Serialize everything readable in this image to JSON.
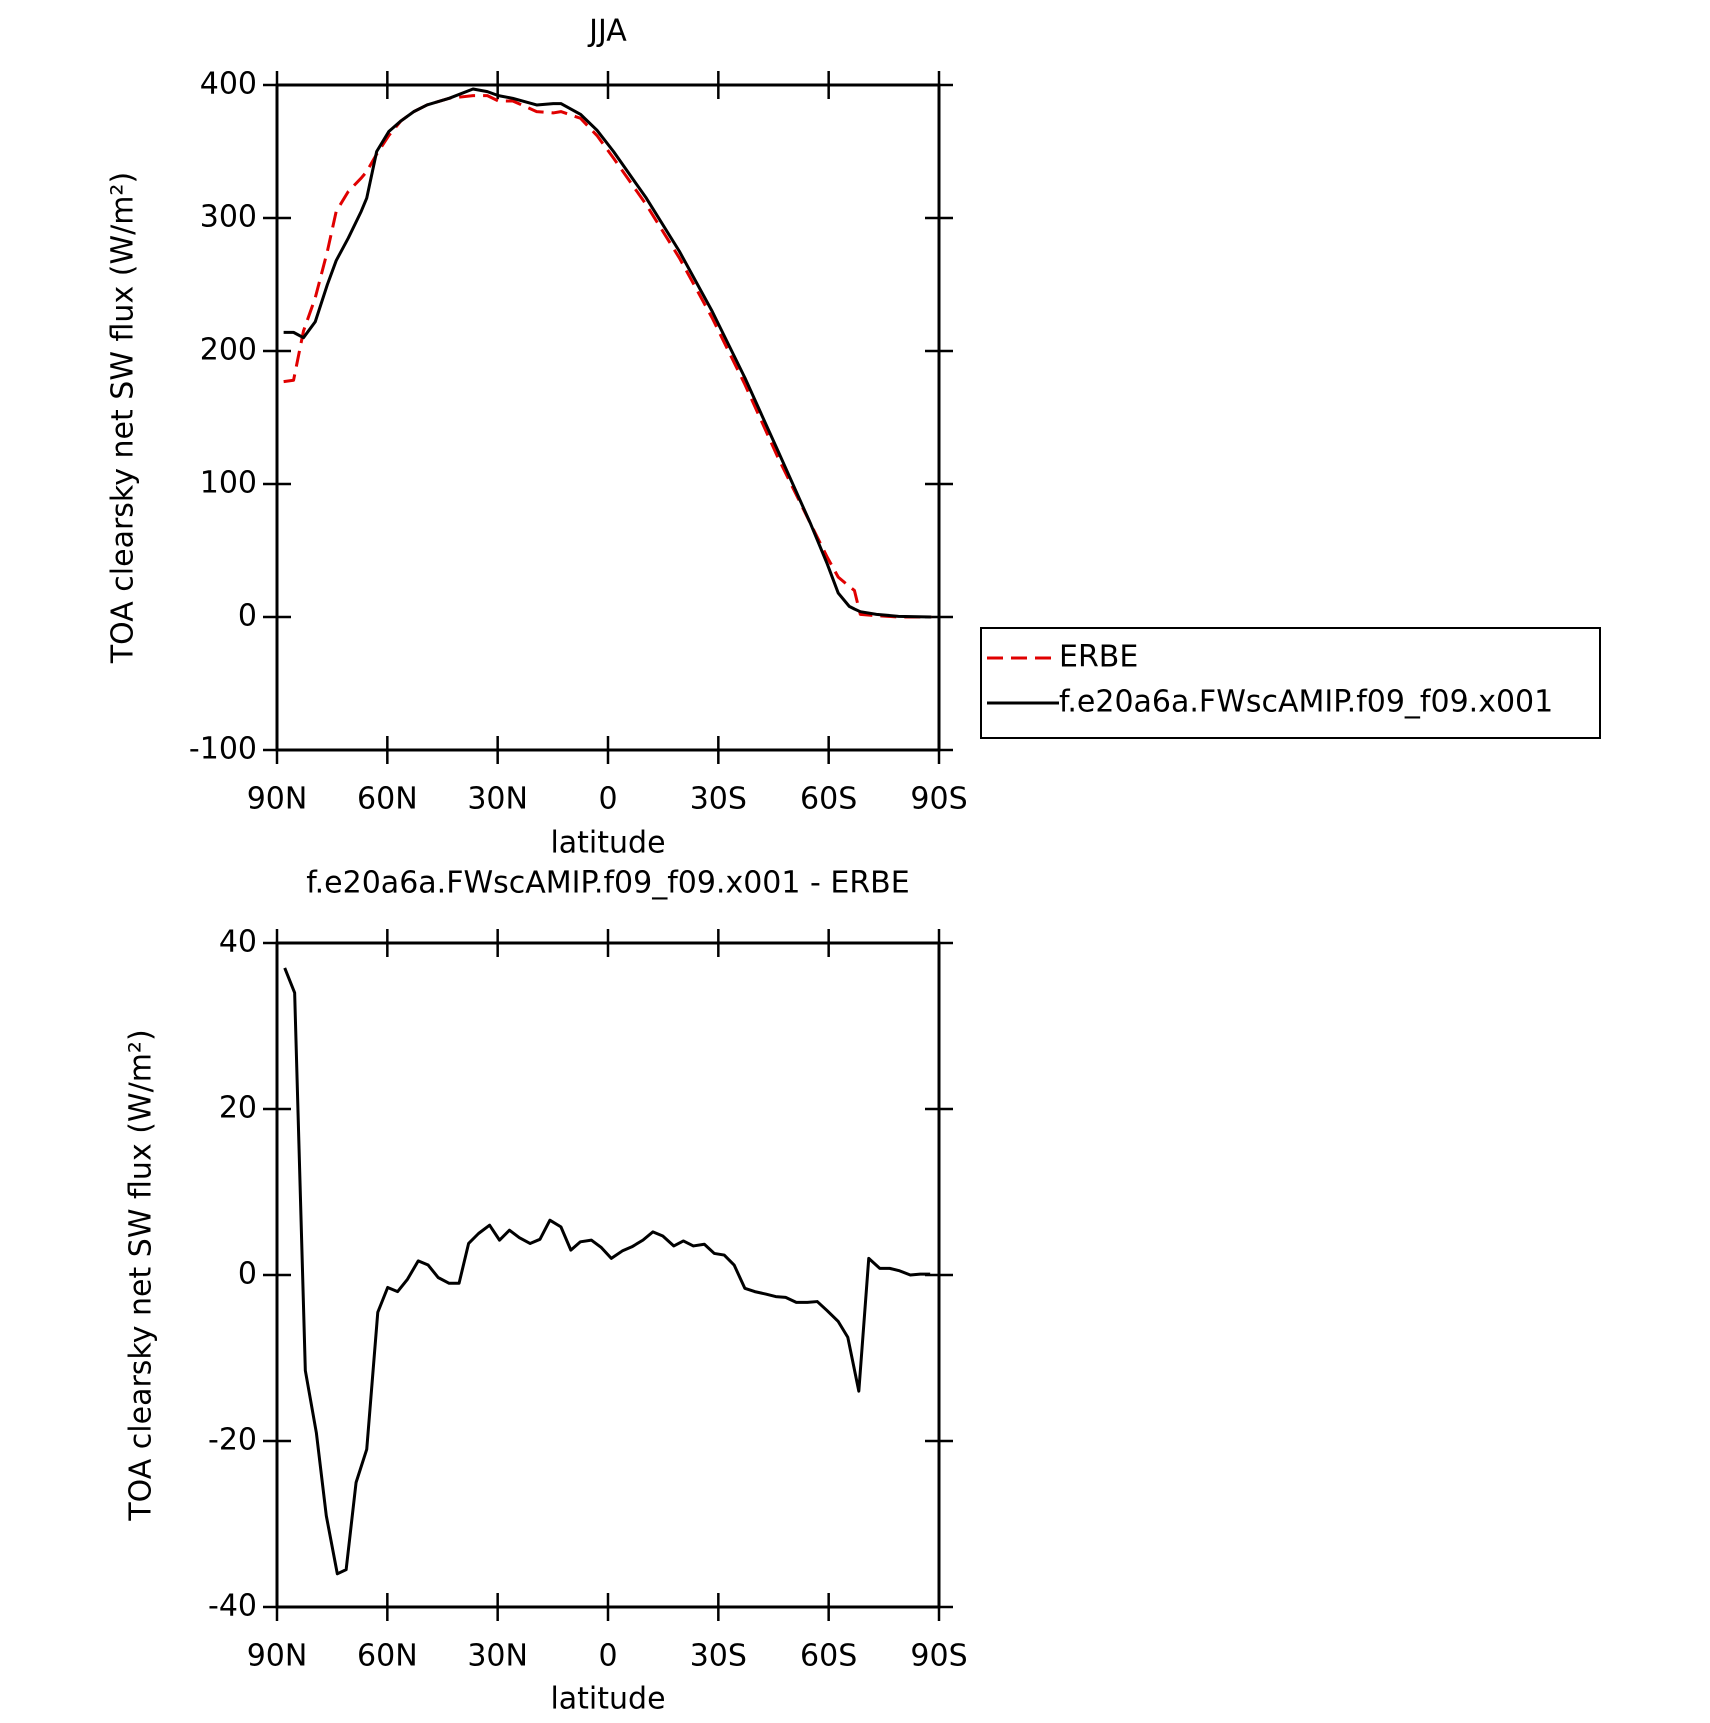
{
  "chart_data": [
    {
      "type": "line",
      "title": "JJA",
      "xlabel": "latitude",
      "ylabel": "TOA clearsky net SW flux (W/m²)",
      "x": [
        88.2,
        85.5,
        82.8,
        79.6,
        76.3,
        73.9,
        70.6,
        67.1,
        65.6,
        62.9,
        59.6,
        56.3,
        52.8,
        49.2,
        43.2,
        36.7,
        32.8,
        29.8,
        25.9,
        19.4,
        14.9,
        12.8,
        7.5,
        3.0,
        -1.5,
        -10.4,
        -19.4,
        -28.3,
        -37.2,
        -46.2,
        -55.1,
        -59.6,
        -62.6,
        -65.6,
        -67.0,
        -68.6,
        -73.0,
        -79.0,
        -87.9
      ],
      "series": [
        {
          "name": "ERBE",
          "color": "#e00000",
          "linestyle": "dashed",
          "values": [
            177,
            178,
            215,
            240,
            275,
            305,
            320,
            330,
            335,
            348,
            362,
            373,
            380,
            385,
            390,
            392,
            392,
            388,
            388,
            380,
            379,
            380,
            375,
            362,
            345,
            310,
            270,
            225,
            175,
            120,
            70,
            45,
            30,
            23,
            20,
            2,
            1,
            0,
            0
          ]
        },
        {
          "name": "f.e20a6a.FWscAMIP.f09_f09.x001",
          "color": "#000000",
          "linestyle": "solid",
          "values": [
            214,
            214,
            210,
            222,
            250,
            268,
            285,
            305,
            315,
            350,
            365,
            373,
            380,
            385,
            390,
            397,
            395,
            392,
            390,
            385,
            386,
            386,
            378,
            366,
            350,
            315,
            275,
            230,
            180,
            125,
            70,
            40,
            18,
            8,
            6,
            4,
            2,
            0.5,
            0
          ]
        }
      ],
      "xlim": [
        90,
        -90
      ],
      "xticks": [
        {
          "value": 90,
          "label": "90N"
        },
        {
          "value": 60,
          "label": "60N"
        },
        {
          "value": 30,
          "label": "30N"
        },
        0,
        {
          "value": -30,
          "label": "30S"
        },
        {
          "value": -60,
          "label": "60S"
        },
        {
          "value": -90,
          "label": "90S"
        }
      ],
      "ylim": [
        -100,
        400
      ],
      "yticks": [
        -100,
        0,
        100,
        200,
        300,
        400
      ],
      "legend": "right"
    },
    {
      "type": "line",
      "title": "f.e20a6a.FWscAMIP.f09_f09.x001 - ERBE",
      "xlabel": "latitude",
      "ylabel": "TOA clearsky net SW flux (W/m²)",
      "x": [
        87.9,
        85.2,
        82.3,
        79.3,
        76.6,
        73.6,
        71.2,
        68.5,
        65.6,
        62.6,
        59.9,
        57.2,
        54.5,
        51.6,
        48.9,
        46.2,
        43.2,
        40.5,
        37.9,
        35.2,
        32.2,
        29.5,
        26.8,
        24.1,
        21.2,
        18.5,
        15.8,
        12.8,
        10.1,
        7.5,
        4.5,
        1.8,
        -0.9,
        -3.9,
        -6.5,
        -9.5,
        -12.2,
        -14.9,
        -17.9,
        -20.5,
        -23.2,
        -26.2,
        -28.9,
        -31.6,
        -34.3,
        -37.2,
        -39.9,
        -42.9,
        -45.6,
        -48.3,
        -51.2,
        -54.2,
        -56.9,
        -59.6,
        -62.6,
        -65.2,
        -68.2,
        -70.9,
        -73.9,
        -76.6,
        -79.3,
        -82.2,
        -84.9,
        -87.6
      ],
      "values": [
        37,
        34,
        -11.5,
        -19,
        -29,
        -36,
        -35.5,
        -25,
        -21,
        -4.5,
        -1.5,
        -2,
        -0.5,
        1.7,
        1.2,
        -0.3,
        -1,
        -1,
        3.8,
        5,
        6,
        4.2,
        5.4,
        4.5,
        3.8,
        4.3,
        6.6,
        5.8,
        3,
        4,
        4.2,
        3.3,
        2,
        2.9,
        3.4,
        4.2,
        5.2,
        4.7,
        3.5,
        4.1,
        3.5,
        3.7,
        2.6,
        2.4,
        1.2,
        -1.6,
        -2,
        -2.3,
        -2.6,
        -2.7,
        -3.3,
        -3.3,
        -3.2,
        -4.3,
        -5.6,
        -7.5,
        -14,
        2,
        0.8,
        0.8,
        0.5,
        0,
        0.1,
        0.1
      ],
      "color": "#000000",
      "xlim": [
        90,
        -90
      ],
      "xticks": [
        {
          "value": 90,
          "label": "90N"
        },
        {
          "value": 60,
          "label": "60N"
        },
        {
          "value": 30,
          "label": "30N"
        },
        0,
        {
          "value": -30,
          "label": "30S"
        },
        {
          "value": -60,
          "label": "60S"
        },
        {
          "value": -90,
          "label": "90S"
        }
      ],
      "ylim": [
        -40,
        40
      ],
      "yticks": [
        -40,
        -20,
        0,
        20,
        40
      ]
    }
  ]
}
